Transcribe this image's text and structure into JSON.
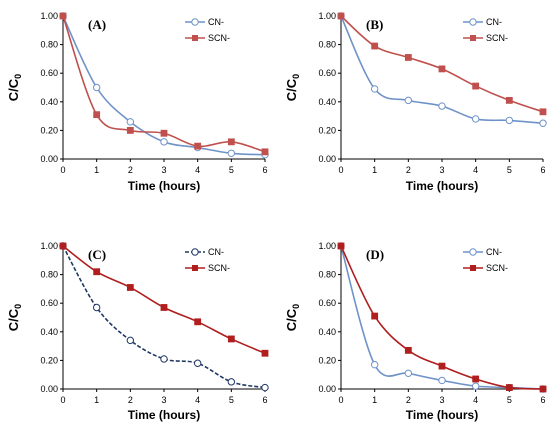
{
  "chart_data": [
    {
      "type": "line",
      "panel": "(A)",
      "xlabel": "Time (hours)",
      "ylabel": "C/C",
      "ylabel_sub": "0",
      "x": [
        0,
        1,
        2,
        3,
        4,
        5,
        6
      ],
      "xlim": [
        0,
        6
      ],
      "ylim": [
        0,
        1
      ],
      "yticks": [
        "0.00",
        "0.20",
        "0.40",
        "0.60",
        "0.80",
        "1.00"
      ],
      "xticks": [
        "0",
        "1",
        "2",
        "3",
        "4",
        "5",
        "6"
      ],
      "legend": "top-right",
      "series": [
        {
          "name": "CN-",
          "values": [
            1.0,
            0.5,
            0.26,
            0.12,
            0.08,
            0.04,
            0.03
          ],
          "color": "#6f93c8",
          "marker": "circle-open",
          "line": "solid"
        },
        {
          "name": "SCN-",
          "values": [
            1.0,
            0.31,
            0.2,
            0.18,
            0.09,
            0.12,
            0.05
          ],
          "color": "#c0504d",
          "marker": "square",
          "line": "solid"
        }
      ]
    },
    {
      "type": "line",
      "panel": "(B)",
      "xlabel": "Time (hours)",
      "ylabel": "C/C",
      "ylabel_sub": "0",
      "x": [
        0,
        1,
        2,
        3,
        4,
        5,
        6
      ],
      "xlim": [
        0,
        6
      ],
      "ylim": [
        0,
        1
      ],
      "yticks": [
        "0.00",
        "0.20",
        "0.40",
        "0.60",
        "0.80",
        "1.00"
      ],
      "xticks": [
        "0",
        "1",
        "2",
        "3",
        "4",
        "5",
        "6"
      ],
      "legend": "top-right",
      "series": [
        {
          "name": "CN-",
          "values": [
            1.0,
            0.49,
            0.41,
            0.37,
            0.28,
            0.27,
            0.25
          ],
          "color": "#6f93c8",
          "marker": "circle-open",
          "line": "solid"
        },
        {
          "name": "SCN-",
          "values": [
            1.0,
            0.79,
            0.71,
            0.63,
            0.51,
            0.41,
            0.33
          ],
          "color": "#c0504d",
          "marker": "square",
          "line": "solid"
        }
      ]
    },
    {
      "type": "line",
      "panel": "(C)",
      "xlabel": "Time (hours)",
      "ylabel": "C/C",
      "ylabel_sub": "0",
      "x": [
        0,
        1,
        2,
        3,
        4,
        5,
        6
      ],
      "xlim": [
        0,
        6
      ],
      "ylim": [
        0,
        1
      ],
      "yticks": [
        "0.00",
        "0.20",
        "0.40",
        "0.60",
        "0.80",
        "1.00"
      ],
      "xticks": [
        "0",
        "1",
        "2",
        "3",
        "4",
        "5",
        "6"
      ],
      "legend": "top-right",
      "series": [
        {
          "name": "CN-",
          "values": [
            1.0,
            0.57,
            0.34,
            0.21,
            0.18,
            0.05,
            0.01
          ],
          "color": "#1f3864",
          "marker": "circle-open",
          "line": "dashed"
        },
        {
          "name": "SCN-",
          "values": [
            1.0,
            0.82,
            0.71,
            0.57,
            0.47,
            0.35,
            0.25
          ],
          "color": "#b01e1e",
          "marker": "square",
          "line": "solid"
        }
      ]
    },
    {
      "type": "line",
      "panel": "(D)",
      "xlabel": "Time (hours)",
      "ylabel": "C/C",
      "ylabel_sub": "0",
      "x": [
        0,
        1,
        2,
        3,
        4,
        5,
        6
      ],
      "xlim": [
        0,
        6
      ],
      "ylim": [
        0,
        1
      ],
      "yticks": [
        "0.00",
        "0.20",
        "0.40",
        "0.60",
        "0.80",
        "1.00"
      ],
      "xticks": [
        "0",
        "1",
        "2",
        "3",
        "4",
        "5",
        "6"
      ],
      "legend": "top-right",
      "series": [
        {
          "name": "CN-",
          "values": [
            1.0,
            0.17,
            0.11,
            0.06,
            0.02,
            0.01,
            0.0
          ],
          "color": "#6f93c8",
          "marker": "circle-open",
          "line": "solid"
        },
        {
          "name": "SCN-",
          "values": [
            1.0,
            0.51,
            0.27,
            0.16,
            0.07,
            0.01,
            0.0
          ],
          "color": "#b01e1e",
          "marker": "square",
          "line": "solid"
        }
      ]
    }
  ]
}
